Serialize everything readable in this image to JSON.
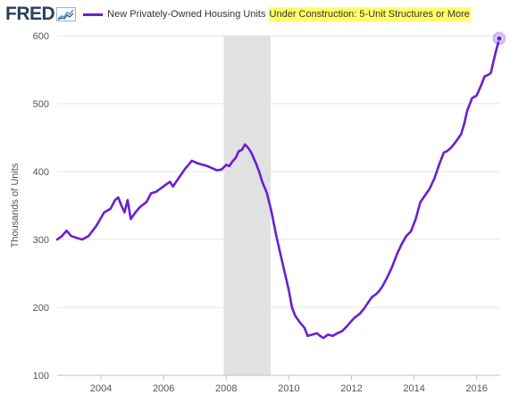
{
  "header": {
    "logo": "FRED",
    "legend_prefix": "New Privately-Owned Housing Units ",
    "legend_highlight": "Under Construction: 5-Unit Structures or More",
    "series_color": "#6a1fd1",
    "highlight_color": "#ffff66"
  },
  "chart_data": {
    "type": "line",
    "title": "",
    "ylabel": "Thousands of Units",
    "xlabel": "",
    "xlim": [
      2002.6,
      2016.75
    ],
    "ylim": [
      100,
      600
    ],
    "xticks": [
      2004,
      2006,
      2008,
      2010,
      2012,
      2014,
      2016
    ],
    "yticks": [
      100,
      200,
      300,
      400,
      500,
      600
    ],
    "grid": "horizontal",
    "recession": [
      2007.92,
      2009.42
    ],
    "series": [
      {
        "name": "New Privately-Owned Housing Units Under Construction: 5-Unit Structures or More",
        "color": "#6a1fd1",
        "points": [
          [
            2002.6,
            300
          ],
          [
            2002.75,
            305
          ],
          [
            2002.9,
            313
          ],
          [
            2003.05,
            305
          ],
          [
            2003.25,
            302
          ],
          [
            2003.4,
            300
          ],
          [
            2003.6,
            305
          ],
          [
            2003.85,
            320
          ],
          [
            2004.1,
            340
          ],
          [
            2004.3,
            345
          ],
          [
            2004.45,
            358
          ],
          [
            2004.55,
            362
          ],
          [
            2004.65,
            350
          ],
          [
            2004.75,
            340
          ],
          [
            2004.85,
            358
          ],
          [
            2004.95,
            330
          ],
          [
            2005.1,
            340
          ],
          [
            2005.25,
            348
          ],
          [
            2005.45,
            355
          ],
          [
            2005.6,
            368
          ],
          [
            2005.75,
            370
          ],
          [
            2005.9,
            375
          ],
          [
            2006.05,
            380
          ],
          [
            2006.2,
            385
          ],
          [
            2006.3,
            378
          ],
          [
            2006.4,
            385
          ],
          [
            2006.55,
            395
          ],
          [
            2006.7,
            405
          ],
          [
            2006.8,
            410
          ],
          [
            2006.9,
            416
          ],
          [
            2007.1,
            412
          ],
          [
            2007.25,
            410
          ],
          [
            2007.4,
            408
          ],
          [
            2007.55,
            405
          ],
          [
            2007.7,
            402
          ],
          [
            2007.85,
            403
          ],
          [
            2008.0,
            410
          ],
          [
            2008.1,
            408
          ],
          [
            2008.2,
            415
          ],
          [
            2008.3,
            420
          ],
          [
            2008.4,
            430
          ],
          [
            2008.5,
            432
          ],
          [
            2008.6,
            440
          ],
          [
            2008.7,
            435
          ],
          [
            2008.8,
            428
          ],
          [
            2008.95,
            412
          ],
          [
            2009.05,
            400
          ],
          [
            2009.15,
            385
          ],
          [
            2009.3,
            368
          ],
          [
            2009.45,
            340
          ],
          [
            2009.6,
            305
          ],
          [
            2009.75,
            275
          ],
          [
            2009.9,
            245
          ],
          [
            2010.0,
            225
          ],
          [
            2010.1,
            200
          ],
          [
            2010.2,
            188
          ],
          [
            2010.35,
            178
          ],
          [
            2010.5,
            170
          ],
          [
            2010.6,
            158
          ],
          [
            2010.75,
            160
          ],
          [
            2010.9,
            162
          ],
          [
            2011.0,
            158
          ],
          [
            2011.1,
            155
          ],
          [
            2011.25,
            160
          ],
          [
            2011.4,
            158
          ],
          [
            2011.55,
            162
          ],
          [
            2011.7,
            165
          ],
          [
            2011.85,
            172
          ],
          [
            2012.0,
            180
          ],
          [
            2012.1,
            185
          ],
          [
            2012.25,
            190
          ],
          [
            2012.4,
            198
          ],
          [
            2012.5,
            205
          ],
          [
            2012.65,
            215
          ],
          [
            2012.8,
            220
          ],
          [
            2012.9,
            225
          ],
          [
            2013.0,
            232
          ],
          [
            2013.15,
            245
          ],
          [
            2013.3,
            260
          ],
          [
            2013.45,
            278
          ],
          [
            2013.6,
            293
          ],
          [
            2013.75,
            305
          ],
          [
            2013.9,
            312
          ],
          [
            2014.05,
            330
          ],
          [
            2014.2,
            355
          ],
          [
            2014.35,
            365
          ],
          [
            2014.5,
            375
          ],
          [
            2014.65,
            390
          ],
          [
            2014.8,
            410
          ],
          [
            2014.95,
            428
          ],
          [
            2015.05,
            430
          ],
          [
            2015.2,
            436
          ],
          [
            2015.35,
            445
          ],
          [
            2015.5,
            455
          ],
          [
            2015.6,
            470
          ],
          [
            2015.7,
            490
          ],
          [
            2015.85,
            508
          ],
          [
            2016.0,
            512
          ],
          [
            2016.15,
            528
          ],
          [
            2016.25,
            540
          ],
          [
            2016.35,
            542
          ],
          [
            2016.45,
            545
          ],
          [
            2016.55,
            565
          ],
          [
            2016.62,
            578
          ],
          [
            2016.68,
            588
          ],
          [
            2016.72,
            596
          ]
        ]
      }
    ]
  }
}
